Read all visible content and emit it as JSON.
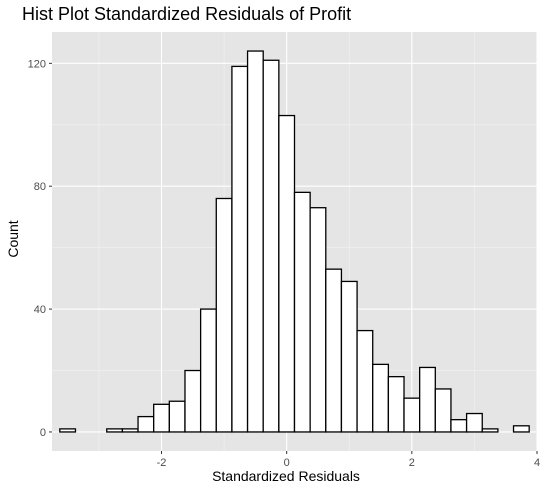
{
  "chart_data": {
    "type": "bar",
    "title": "Hist Plot Standardized Residuals of Profit",
    "xlabel": "Standardized Residuals",
    "ylabel": "Count",
    "bin_width": 0.25,
    "bins": [
      {
        "x": -3.5,
        "count": 1
      },
      {
        "x": -3.25,
        "count": 0
      },
      {
        "x": -3.0,
        "count": 0
      },
      {
        "x": -2.75,
        "count": 1
      },
      {
        "x": -2.5,
        "count": 1
      },
      {
        "x": -2.25,
        "count": 5
      },
      {
        "x": -2.0,
        "count": 9
      },
      {
        "x": -1.75,
        "count": 10
      },
      {
        "x": -1.5,
        "count": 20
      },
      {
        "x": -1.25,
        "count": 40
      },
      {
        "x": -1.0,
        "count": 76
      },
      {
        "x": -0.75,
        "count": 119
      },
      {
        "x": -0.5,
        "count": 124
      },
      {
        "x": -0.25,
        "count": 121
      },
      {
        "x": 0.0,
        "count": 103
      },
      {
        "x": 0.25,
        "count": 78
      },
      {
        "x": 0.5,
        "count": 73
      },
      {
        "x": 0.75,
        "count": 53
      },
      {
        "x": 1.0,
        "count": 49
      },
      {
        "x": 1.25,
        "count": 33
      },
      {
        "x": 1.5,
        "count": 22
      },
      {
        "x": 1.75,
        "count": 18
      },
      {
        "x": 2.0,
        "count": 11
      },
      {
        "x": 2.25,
        "count": 21
      },
      {
        "x": 2.5,
        "count": 14
      },
      {
        "x": 2.75,
        "count": 4
      },
      {
        "x": 3.0,
        "count": 6
      },
      {
        "x": 3.25,
        "count": 1
      },
      {
        "x": 3.5,
        "count": 0
      },
      {
        "x": 3.75,
        "count": 2
      }
    ],
    "xlim": [
      -3.75,
      4.0
    ],
    "ylim": [
      -6.2,
      130.2
    ],
    "x_ticks": [
      -2,
      0,
      2,
      4
    ],
    "x_tick_labels": [
      "-2",
      "0",
      "2",
      "4"
    ],
    "y_ticks": [
      0,
      40,
      80,
      120
    ],
    "y_tick_labels": [
      "0",
      "40",
      "80",
      "120"
    ],
    "grid": true,
    "colors": {
      "panel_background": "#e5e5e5",
      "grid_major": "#ffffff",
      "grid_minor": "#f2f2f2",
      "bar_fill": "#ffffff",
      "bar_outline": "#000000",
      "tick_text": "#4d4d4d"
    }
  }
}
